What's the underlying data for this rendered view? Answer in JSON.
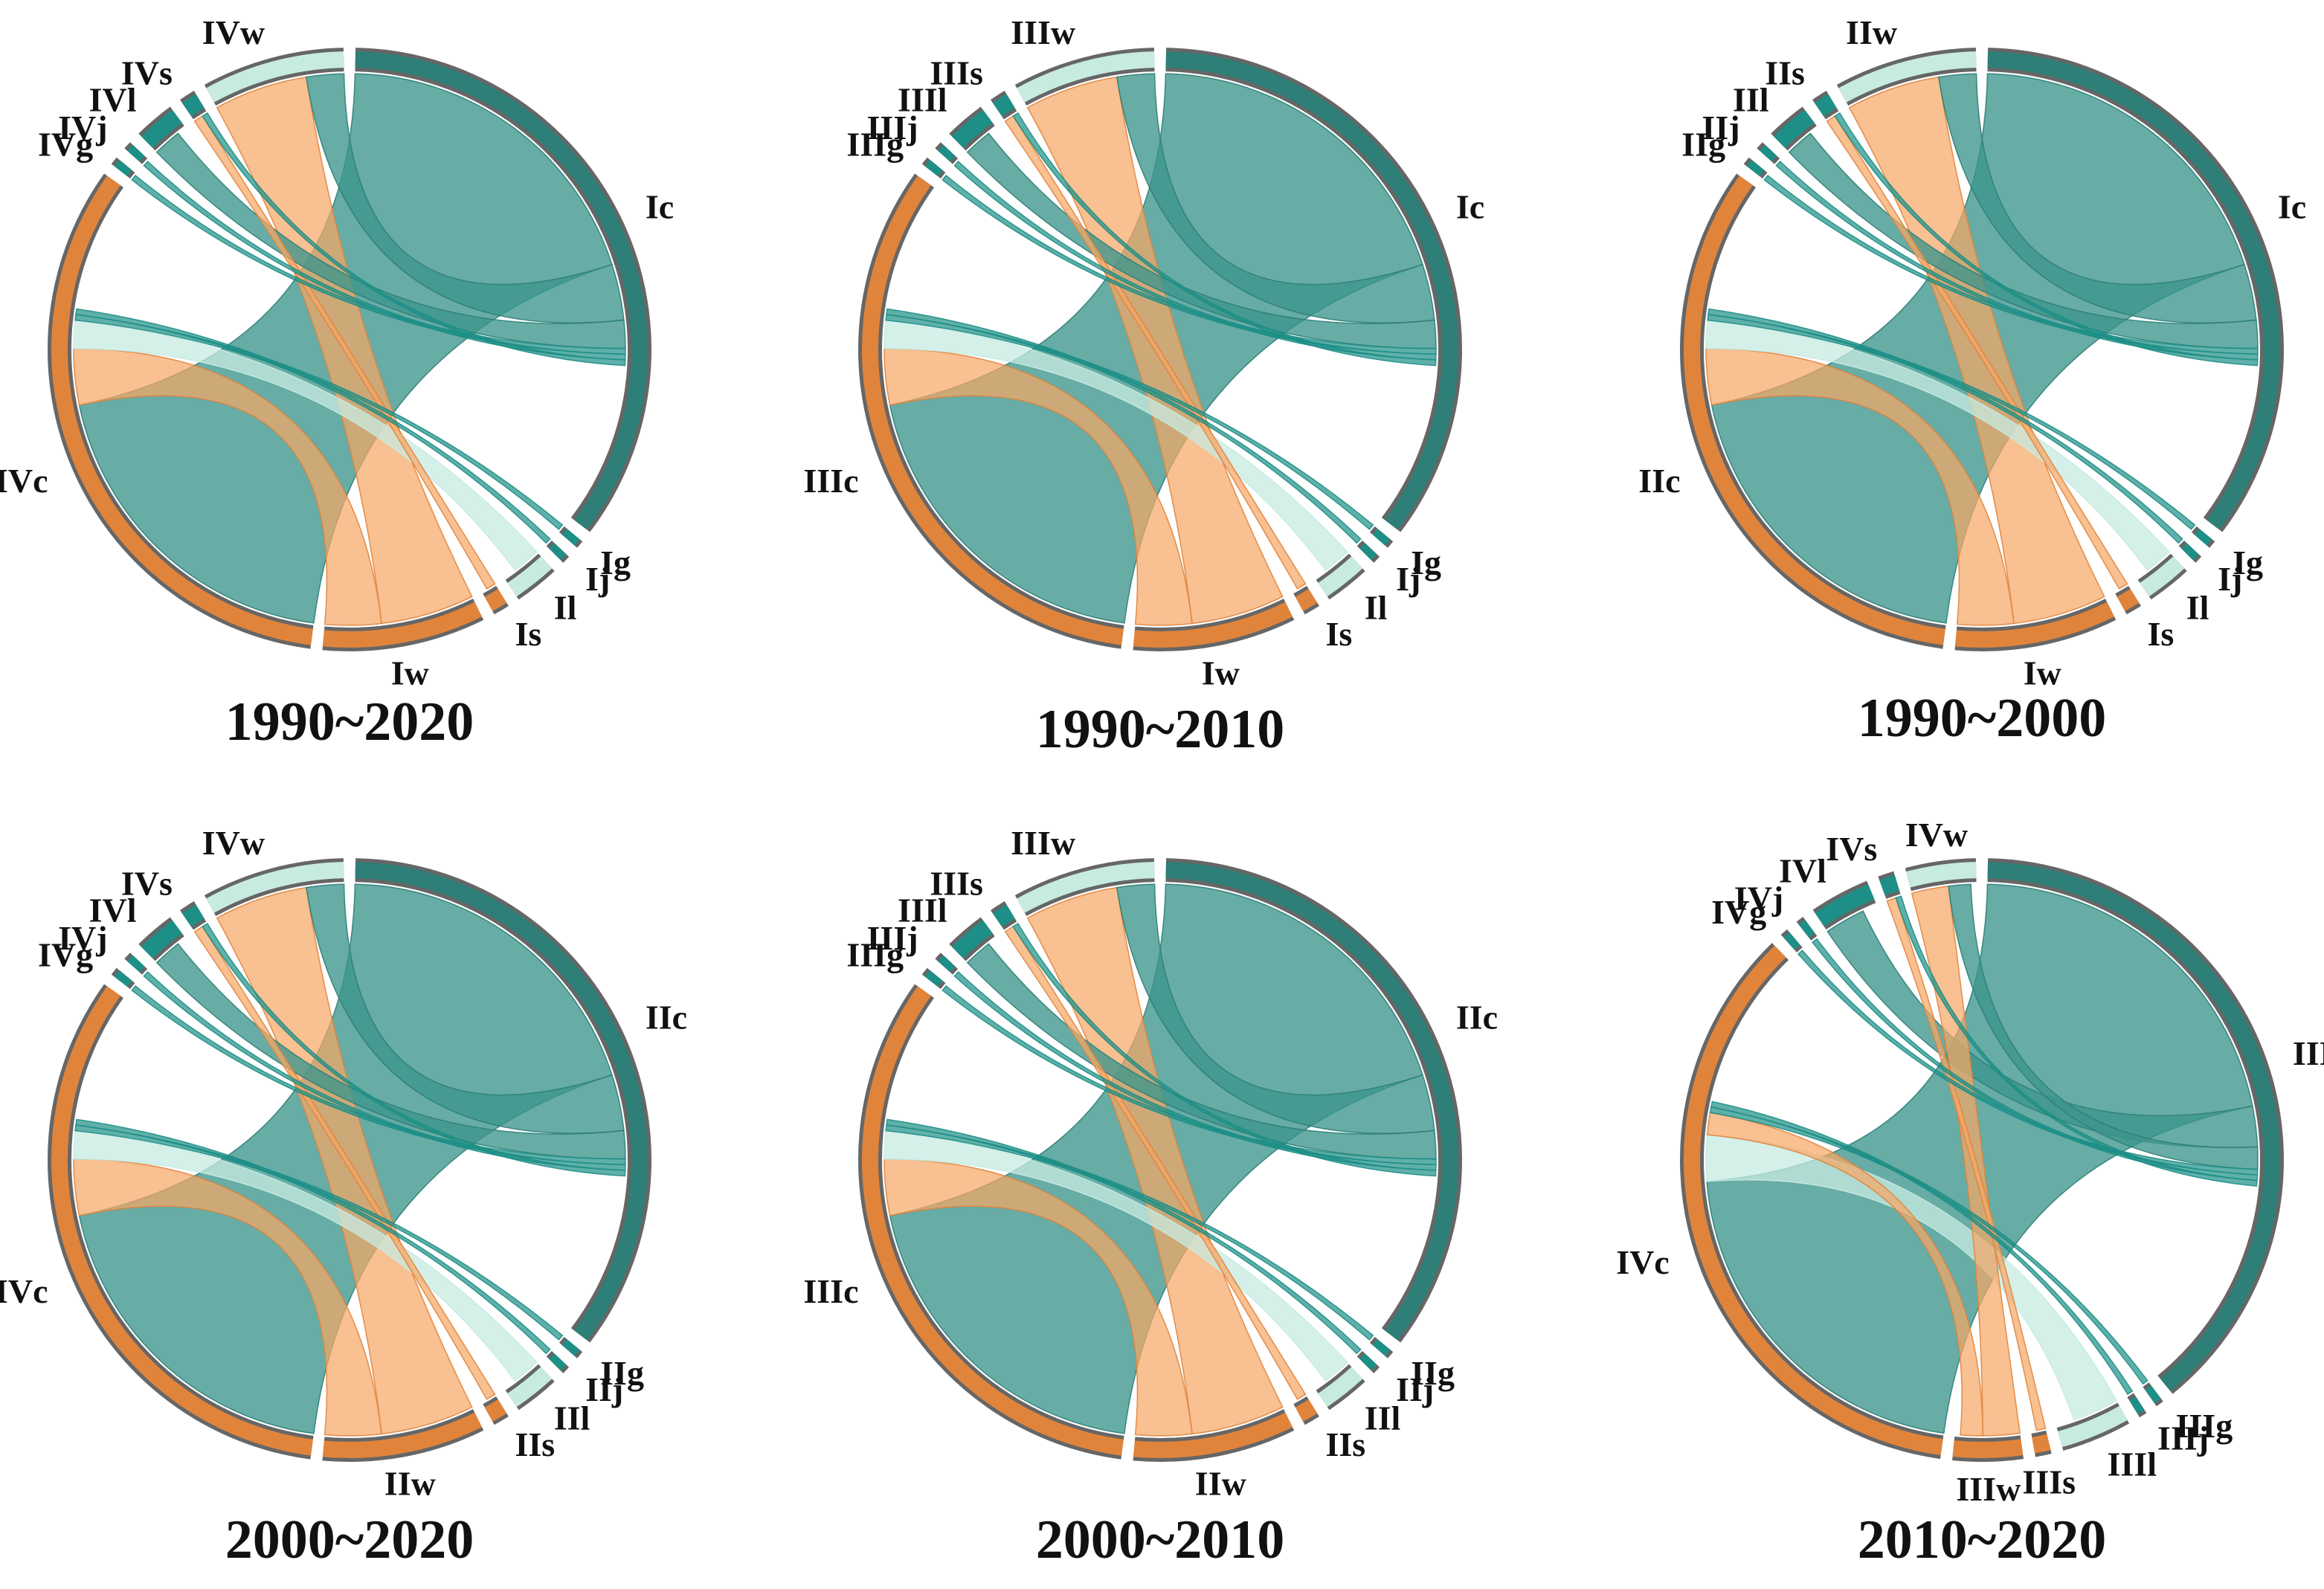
{
  "colors": {
    "cropland": "#3c958c",
    "cropland_dark": "#2d7f77",
    "water": "#f7a766",
    "water_dark": "#e0843c",
    "wetland": "#c7ebe1",
    "small": "#1d8f86",
    "outline": "#666666"
  },
  "chart_data": [
    {
      "type": "chord",
      "title": "1990~2020",
      "segments": [
        {
          "label": "Ic",
          "kind": "cropland",
          "weight": 32
        },
        {
          "label": "Ig",
          "kind": "small",
          "weight": 0.4
        },
        {
          "label": "Ij",
          "kind": "small",
          "weight": 0.4
        },
        {
          "label": "Il",
          "kind": "wetland",
          "weight": 2.2
        },
        {
          "label": "Is",
          "kind": "water",
          "weight": 0.8
        },
        {
          "label": "Iw",
          "kind": "water",
          "weight": 8
        },
        {
          "label": "IVc",
          "kind": "water",
          "weight": 30
        },
        {
          "label": "IVg",
          "kind": "small",
          "weight": 0.4
        },
        {
          "label": "IVj",
          "kind": "small",
          "weight": 0.4
        },
        {
          "label": "IVl",
          "kind": "small",
          "weight": 2
        },
        {
          "label": "IVs",
          "kind": "small",
          "weight": 0.8
        },
        {
          "label": "IVw",
          "kind": "wetland",
          "weight": 7
        }
      ],
      "flows": [
        {
          "from": "Ic",
          "to": "IVc",
          "value": 18,
          "color": "cropland"
        },
        {
          "from": "Iw",
          "to": "IVw",
          "value": 5,
          "color": "water"
        },
        {
          "from": "Iw",
          "to": "IVc",
          "value": 3,
          "color": "water"
        },
        {
          "from": "Ic",
          "to": "IVw",
          "value": 3,
          "color": "cropland"
        },
        {
          "from": "Ic",
          "to": "IVl",
          "value": 1.5,
          "color": "cropland"
        },
        {
          "from": "Il",
          "to": "IVc",
          "value": 1.5,
          "color": "wetland"
        },
        {
          "from": "Ig",
          "to": "IVc",
          "value": 0.3,
          "color": "small"
        },
        {
          "from": "Ij",
          "to": "IVc",
          "value": 0.3,
          "color": "small"
        },
        {
          "from": "Is",
          "to": "IVs",
          "value": 0.5,
          "color": "water"
        },
        {
          "from": "Ic",
          "to": "IVg",
          "value": 0.3,
          "color": "small"
        },
        {
          "from": "Ic",
          "to": "IVj",
          "value": 0.3,
          "color": "small"
        },
        {
          "from": "Ic",
          "to": "IVs",
          "value": 0.3,
          "color": "small"
        }
      ]
    },
    {
      "type": "chord",
      "title": "1990~2010",
      "segments": [
        {
          "label": "Ic",
          "kind": "cropland",
          "weight": 32
        },
        {
          "label": "Ig",
          "kind": "small",
          "weight": 0.4
        },
        {
          "label": "Ij",
          "kind": "small",
          "weight": 0.4
        },
        {
          "label": "Il",
          "kind": "wetland",
          "weight": 2.2
        },
        {
          "label": "Is",
          "kind": "water",
          "weight": 0.8
        },
        {
          "label": "Iw",
          "kind": "water",
          "weight": 8
        },
        {
          "label": "IIIc",
          "kind": "water",
          "weight": 30
        },
        {
          "label": "IIIg",
          "kind": "small",
          "weight": 0.4
        },
        {
          "label": "IIIj",
          "kind": "small",
          "weight": 0.4
        },
        {
          "label": "IIIl",
          "kind": "small",
          "weight": 2
        },
        {
          "label": "IIIs",
          "kind": "small",
          "weight": 0.8
        },
        {
          "label": "IIIw",
          "kind": "wetland",
          "weight": 7
        }
      ],
      "flows": [
        {
          "from": "Ic",
          "to": "IIIc",
          "value": 18,
          "color": "cropland"
        },
        {
          "from": "Iw",
          "to": "IIIw",
          "value": 5,
          "color": "water"
        },
        {
          "from": "Iw",
          "to": "IIIc",
          "value": 3,
          "color": "water"
        },
        {
          "from": "Ic",
          "to": "IIIw",
          "value": 3,
          "color": "cropland"
        },
        {
          "from": "Ic",
          "to": "IIIl",
          "value": 1.5,
          "color": "cropland"
        },
        {
          "from": "Il",
          "to": "IIIc",
          "value": 1.5,
          "color": "wetland"
        },
        {
          "from": "Ig",
          "to": "IIIc",
          "value": 0.3,
          "color": "small"
        },
        {
          "from": "Ij",
          "to": "IIIc",
          "value": 0.3,
          "color": "small"
        },
        {
          "from": "Is",
          "to": "IIIs",
          "value": 0.5,
          "color": "water"
        },
        {
          "from": "Ic",
          "to": "IIIg",
          "value": 0.3,
          "color": "small"
        },
        {
          "from": "Ic",
          "to": "IIIj",
          "value": 0.3,
          "color": "small"
        },
        {
          "from": "Ic",
          "to": "IIIs",
          "value": 0.3,
          "color": "small"
        }
      ]
    },
    {
      "type": "chord",
      "title": "1990~2000",
      "segments": [
        {
          "label": "Ic",
          "kind": "cropland",
          "weight": 32
        },
        {
          "label": "Ig",
          "kind": "small",
          "weight": 0.4
        },
        {
          "label": "Ij",
          "kind": "small",
          "weight": 0.4
        },
        {
          "label": "Il",
          "kind": "wetland",
          "weight": 2.2
        },
        {
          "label": "Is",
          "kind": "water",
          "weight": 0.8
        },
        {
          "label": "Iw",
          "kind": "water",
          "weight": 8
        },
        {
          "label": "IIc",
          "kind": "water",
          "weight": 30
        },
        {
          "label": "IIg",
          "kind": "small",
          "weight": 0.4
        },
        {
          "label": "IIj",
          "kind": "small",
          "weight": 0.4
        },
        {
          "label": "IIl",
          "kind": "small",
          "weight": 2
        },
        {
          "label": "IIs",
          "kind": "small",
          "weight": 0.8
        },
        {
          "label": "IIw",
          "kind": "wetland",
          "weight": 7
        }
      ],
      "flows": [
        {
          "from": "Ic",
          "to": "IIc",
          "value": 18,
          "color": "cropland"
        },
        {
          "from": "Iw",
          "to": "IIw",
          "value": 5,
          "color": "water"
        },
        {
          "from": "Iw",
          "to": "IIc",
          "value": 3,
          "color": "water"
        },
        {
          "from": "Ic",
          "to": "IIw",
          "value": 3,
          "color": "cropland"
        },
        {
          "from": "Ic",
          "to": "IIl",
          "value": 1.5,
          "color": "cropland"
        },
        {
          "from": "Il",
          "to": "IIc",
          "value": 1.5,
          "color": "wetland"
        },
        {
          "from": "Ig",
          "to": "IIc",
          "value": 0.3,
          "color": "small"
        },
        {
          "from": "Ij",
          "to": "IIc",
          "value": 0.3,
          "color": "small"
        },
        {
          "from": "Is",
          "to": "IIs",
          "value": 0.5,
          "color": "water"
        },
        {
          "from": "Ic",
          "to": "IIg",
          "value": 0.3,
          "color": "small"
        },
        {
          "from": "Ic",
          "to": "IIj",
          "value": 0.3,
          "color": "small"
        },
        {
          "from": "Ic",
          "to": "IIs",
          "value": 0.3,
          "color": "small"
        }
      ]
    },
    {
      "type": "chord",
      "title": "2000~2020",
      "segments": [
        {
          "label": "IIc",
          "kind": "cropland",
          "weight": 32
        },
        {
          "label": "IIg",
          "kind": "small",
          "weight": 0.4
        },
        {
          "label": "IIj",
          "kind": "small",
          "weight": 0.4
        },
        {
          "label": "IIl",
          "kind": "wetland",
          "weight": 2.2
        },
        {
          "label": "IIs",
          "kind": "water",
          "weight": 0.8
        },
        {
          "label": "IIw",
          "kind": "water",
          "weight": 8
        },
        {
          "label": "IVc",
          "kind": "water",
          "weight": 30
        },
        {
          "label": "IVg",
          "kind": "small",
          "weight": 0.4
        },
        {
          "label": "IVj",
          "kind": "small",
          "weight": 0.4
        },
        {
          "label": "IVl",
          "kind": "small",
          "weight": 2
        },
        {
          "label": "IVs",
          "kind": "small",
          "weight": 0.8
        },
        {
          "label": "IVw",
          "kind": "wetland",
          "weight": 7
        }
      ],
      "flows": [
        {
          "from": "IIc",
          "to": "IVc",
          "value": 18,
          "color": "cropland"
        },
        {
          "from": "IIw",
          "to": "IVw",
          "value": 5,
          "color": "water"
        },
        {
          "from": "IIw",
          "to": "IVc",
          "value": 3,
          "color": "water"
        },
        {
          "from": "IIc",
          "to": "IVw",
          "value": 3,
          "color": "cropland"
        },
        {
          "from": "IIc",
          "to": "IVl",
          "value": 1.5,
          "color": "cropland"
        },
        {
          "from": "IIl",
          "to": "IVc",
          "value": 1.5,
          "color": "wetland"
        },
        {
          "from": "IIg",
          "to": "IVc",
          "value": 0.3,
          "color": "small"
        },
        {
          "from": "IIj",
          "to": "IVc",
          "value": 0.3,
          "color": "small"
        },
        {
          "from": "IIs",
          "to": "IVs",
          "value": 0.5,
          "color": "water"
        },
        {
          "from": "IIc",
          "to": "IVg",
          "value": 0.3,
          "color": "small"
        },
        {
          "from": "IIc",
          "to": "IVj",
          "value": 0.3,
          "color": "small"
        },
        {
          "from": "IIc",
          "to": "IVs",
          "value": 0.3,
          "color": "small"
        }
      ]
    },
    {
      "type": "chord",
      "title": "2000~2010",
      "segments": [
        {
          "label": "IIc",
          "kind": "cropland",
          "weight": 32
        },
        {
          "label": "IIg",
          "kind": "small",
          "weight": 0.4
        },
        {
          "label": "IIj",
          "kind": "small",
          "weight": 0.4
        },
        {
          "label": "IIl",
          "kind": "wetland",
          "weight": 2.2
        },
        {
          "label": "IIs",
          "kind": "water",
          "weight": 0.8
        },
        {
          "label": "IIw",
          "kind": "water",
          "weight": 8
        },
        {
          "label": "IIIc",
          "kind": "water",
          "weight": 30
        },
        {
          "label": "IIIg",
          "kind": "small",
          "weight": 0.4
        },
        {
          "label": "IIIj",
          "kind": "small",
          "weight": 0.4
        },
        {
          "label": "IIIl",
          "kind": "small",
          "weight": 2
        },
        {
          "label": "IIIs",
          "kind": "small",
          "weight": 0.8
        },
        {
          "label": "IIIw",
          "kind": "wetland",
          "weight": 7
        }
      ],
      "flows": [
        {
          "from": "IIc",
          "to": "IIIc",
          "value": 18,
          "color": "cropland"
        },
        {
          "from": "IIw",
          "to": "IIIw",
          "value": 5,
          "color": "water"
        },
        {
          "from": "IIw",
          "to": "IIIc",
          "value": 3,
          "color": "water"
        },
        {
          "from": "IIc",
          "to": "IIIw",
          "value": 3,
          "color": "cropland"
        },
        {
          "from": "IIc",
          "to": "IIIl",
          "value": 1.5,
          "color": "cropland"
        },
        {
          "from": "IIl",
          "to": "IIIc",
          "value": 1.5,
          "color": "wetland"
        },
        {
          "from": "IIg",
          "to": "IIIc",
          "value": 0.3,
          "color": "small"
        },
        {
          "from": "IIj",
          "to": "IIIc",
          "value": 0.3,
          "color": "small"
        },
        {
          "from": "IIs",
          "to": "IIIs",
          "value": 0.5,
          "color": "water"
        },
        {
          "from": "IIc",
          "to": "IIIg",
          "value": 0.3,
          "color": "small"
        },
        {
          "from": "IIc",
          "to": "IIIj",
          "value": 0.3,
          "color": "small"
        },
        {
          "from": "IIc",
          "to": "IIIs",
          "value": 0.3,
          "color": "small"
        }
      ]
    },
    {
      "type": "chord",
      "title": "2010~2020",
      "segments": [
        {
          "label": "IIIc",
          "kind": "cropland",
          "weight": 36
        },
        {
          "label": "IIIg",
          "kind": "small",
          "weight": 0.4
        },
        {
          "label": "IIIj",
          "kind": "small",
          "weight": 0.4
        },
        {
          "label": "IIIl",
          "kind": "wetland",
          "weight": 3.5
        },
        {
          "label": "IIIs",
          "kind": "water",
          "weight": 0.8
        },
        {
          "label": "IIIw",
          "kind": "water",
          "weight": 3.5
        },
        {
          "label": "IVc",
          "kind": "water",
          "weight": 33
        },
        {
          "label": "IVg",
          "kind": "small",
          "weight": 0.4
        },
        {
          "label": "IVj",
          "kind": "small",
          "weight": 0.4
        },
        {
          "label": "IVl",
          "kind": "small",
          "weight": 3
        },
        {
          "label": "IVs",
          "kind": "small",
          "weight": 0.8
        },
        {
          "label": "IVw",
          "kind": "wetland",
          "weight": 3.5
        }
      ],
      "flows": [
        {
          "from": "IIIc",
          "to": "IVc",
          "value": 20,
          "color": "cropland"
        },
        {
          "from": "IIIw",
          "to": "IVw",
          "value": 2,
          "color": "water"
        },
        {
          "from": "IIIw",
          "to": "IVc",
          "value": 1.2,
          "color": "water"
        },
        {
          "from": "IIIc",
          "to": "IVw",
          "value": 1.2,
          "color": "cropland"
        },
        {
          "from": "IIIc",
          "to": "IVl",
          "value": 2.2,
          "color": "cropland"
        },
        {
          "from": "IIIl",
          "to": "IVc",
          "value": 2.5,
          "color": "wetland"
        },
        {
          "from": "IIIg",
          "to": "IVc",
          "value": 0.3,
          "color": "small"
        },
        {
          "from": "IIIj",
          "to": "IVc",
          "value": 0.3,
          "color": "small"
        },
        {
          "from": "IIIs",
          "to": "IVs",
          "value": 0.5,
          "color": "water"
        },
        {
          "from": "IIIc",
          "to": "IVg",
          "value": 0.3,
          "color": "small"
        },
        {
          "from": "IIIc",
          "to": "IVj",
          "value": 0.3,
          "color": "small"
        },
        {
          "from": "IIIc",
          "to": "IVs",
          "value": 0.3,
          "color": "small"
        }
      ]
    }
  ]
}
